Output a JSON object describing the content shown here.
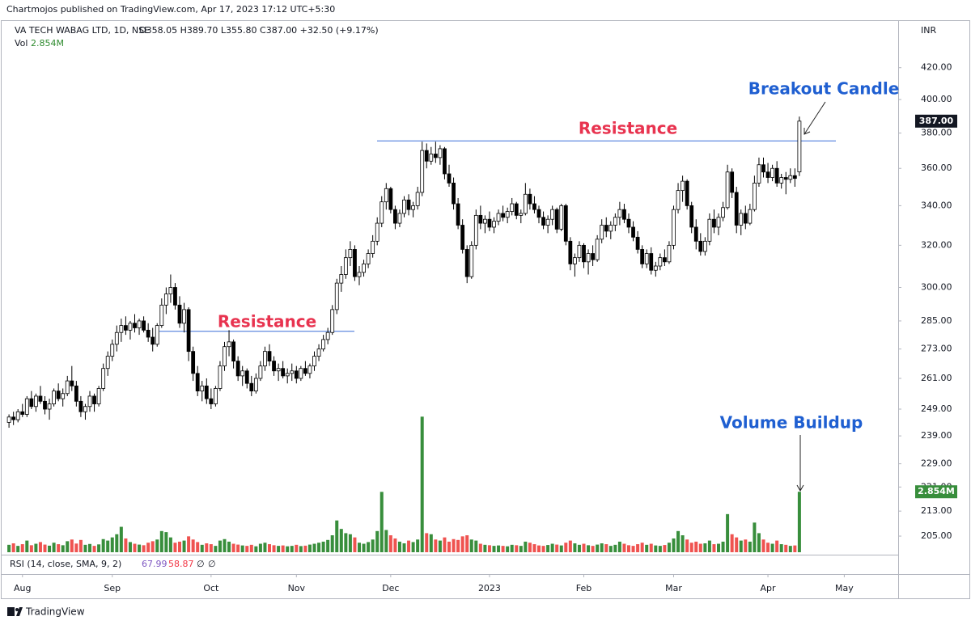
{
  "header": {
    "published": "Chartmojos published on TradingView.com, Apr 17, 2023 17:12 UTC+5:30",
    "symbol": "VA TECH WABAG LTD, 1D, NSE",
    "ohlc_text": "O358.05 H389.70 L355.80 C387.00 +32.50 (+9.17%)",
    "vol_label": "Vol",
    "currency": "INR",
    "rsi_label": "RSI (14, close, SMA, 9, 2)",
    "rsi_values": [
      67.99,
      58.87,
      "∅",
      "∅"
    ],
    "brand": "TradingView"
  },
  "chart_data": {
    "type": "candlestick",
    "log_scale": true,
    "grid": false,
    "up_color": "#ffffff",
    "down_color": "#000000",
    "volume_up_color": "#388e3c",
    "volume_down_color": "#ef5350",
    "ylim": [
      200,
      450
    ],
    "yticks": [
      {
        "value": 205,
        "label": "205.00"
      },
      {
        "value": 213,
        "label": "213.00"
      },
      {
        "value": 221,
        "label": "221.00"
      },
      {
        "value": 229,
        "label": "229.00"
      },
      {
        "value": 239,
        "label": "239.00"
      },
      {
        "value": 249,
        "label": "249.00"
      },
      {
        "value": 261,
        "label": "261.00"
      },
      {
        "value": 273,
        "label": "273.00"
      },
      {
        "value": 285,
        "label": "285.00"
      },
      {
        "value": 300,
        "label": "300.00"
      },
      {
        "value": 320,
        "label": "320.00"
      },
      {
        "value": 340,
        "label": "340.00"
      },
      {
        "value": 360,
        "label": "360.00"
      },
      {
        "value": 380,
        "label": "380.00"
      },
      {
        "value": 400,
        "label": "400.00"
      },
      {
        "value": 420,
        "label": "420.00"
      }
    ],
    "xlim": [
      -2,
      198
    ],
    "xticks": [
      {
        "value": 3,
        "label": "Aug"
      },
      {
        "value": 23,
        "label": "Sep"
      },
      {
        "value": 45,
        "label": "Oct"
      },
      {
        "value": 64,
        "label": "Nov"
      },
      {
        "value": 85,
        "label": "Dec"
      },
      {
        "value": 107,
        "label": "2023"
      },
      {
        "value": 128,
        "label": "Feb"
      },
      {
        "value": 148,
        "label": "Mar"
      },
      {
        "value": 169,
        "label": "Apr"
      },
      {
        "value": 186,
        "label": "May"
      }
    ],
    "ohlc": [
      [
        244,
        247,
        242,
        246
      ],
      [
        246,
        248,
        243,
        245
      ],
      [
        245,
        249,
        244,
        248
      ],
      [
        248,
        251,
        246,
        247
      ],
      [
        247,
        254,
        246,
        253
      ],
      [
        253,
        256,
        249,
        250
      ],
      [
        250,
        255,
        248,
        254
      ],
      [
        254,
        258,
        251,
        252
      ],
      [
        252,
        254,
        247,
        249
      ],
      [
        249,
        253,
        245,
        251
      ],
      [
        251,
        257,
        250,
        256
      ],
      [
        256,
        259,
        252,
        253
      ],
      [
        253,
        257,
        250,
        255
      ],
      [
        255,
        262,
        254,
        260
      ],
      [
        260,
        266,
        256,
        258
      ],
      [
        258,
        260,
        250,
        252
      ],
      [
        252,
        254,
        246,
        248
      ],
      [
        248,
        251,
        245,
        250
      ],
      [
        250,
        256,
        248,
        254
      ],
      [
        254,
        255,
        248,
        251
      ],
      [
        251,
        258,
        250,
        257
      ],
      [
        257,
        267,
        256,
        265
      ],
      [
        265,
        272,
        262,
        270
      ],
      [
        270,
        277,
        268,
        275
      ],
      [
        275,
        283,
        272,
        280
      ],
      [
        280,
        286,
        276,
        283
      ],
      [
        283,
        287,
        279,
        281
      ],
      [
        281,
        285,
        277,
        284
      ],
      [
        284,
        288,
        280,
        282
      ],
      [
        282,
        286,
        279,
        285
      ],
      [
        285,
        287,
        280,
        281
      ],
      [
        281,
        284,
        276,
        278
      ],
      [
        278,
        282,
        272,
        275
      ],
      [
        275,
        284,
        274,
        283
      ],
      [
        283,
        295,
        282,
        292
      ],
      [
        292,
        300,
        288,
        297
      ],
      [
        297,
        306,
        293,
        300
      ],
      [
        300,
        302,
        290,
        292
      ],
      [
        292,
        296,
        282,
        284
      ],
      [
        284,
        293,
        280,
        290
      ],
      [
        290,
        291,
        268,
        272
      ],
      [
        272,
        274,
        260,
        263
      ],
      [
        263,
        266,
        254,
        256
      ],
      [
        256,
        260,
        252,
        258
      ],
      [
        258,
        261,
        251,
        253
      ],
      [
        253,
        257,
        249,
        251
      ],
      [
        251,
        258,
        250,
        257
      ],
      [
        257,
        268,
        256,
        266
      ],
      [
        266,
        276,
        264,
        274
      ],
      [
        274,
        281,
        270,
        276
      ],
      [
        276,
        277,
        265,
        268
      ],
      [
        268,
        270,
        260,
        262
      ],
      [
        262,
        266,
        258,
        264
      ],
      [
        264,
        265,
        257,
        259
      ],
      [
        259,
        262,
        254,
        256
      ],
      [
        256,
        263,
        255,
        261
      ],
      [
        261,
        268,
        260,
        266
      ],
      [
        266,
        274,
        264,
        272
      ],
      [
        272,
        275,
        266,
        268
      ],
      [
        268,
        270,
        262,
        264
      ],
      [
        264,
        267,
        260,
        265
      ],
      [
        265,
        268,
        261,
        262
      ],
      [
        262,
        265,
        259,
        263
      ],
      [
        263,
        267,
        260,
        264
      ],
      [
        264,
        266,
        259,
        261
      ],
      [
        261,
        266,
        260,
        265
      ],
      [
        265,
        268,
        262,
        263
      ],
      [
        263,
        267,
        261,
        266
      ],
      [
        266,
        272,
        264,
        270
      ],
      [
        270,
        275,
        268,
        273
      ],
      [
        273,
        279,
        272,
        277
      ],
      [
        277,
        282,
        275,
        280
      ],
      [
        280,
        292,
        279,
        290
      ],
      [
        290,
        304,
        288,
        302
      ],
      [
        302,
        310,
        298,
        306
      ],
      [
        306,
        318,
        304,
        314
      ],
      [
        314,
        322,
        310,
        318
      ],
      [
        318,
        320,
        303,
        305
      ],
      [
        305,
        310,
        301,
        307
      ],
      [
        307,
        313,
        305,
        311
      ],
      [
        311,
        318,
        309,
        316
      ],
      [
        316,
        325,
        314,
        322
      ],
      [
        322,
        334,
        320,
        331
      ],
      [
        331,
        345,
        329,
        342
      ],
      [
        342,
        352,
        338,
        349
      ],
      [
        349,
        350,
        336,
        338
      ],
      [
        338,
        340,
        328,
        331
      ],
      [
        331,
        338,
        329,
        336
      ],
      [
        336,
        345,
        334,
        343
      ],
      [
        343,
        346,
        335,
        338
      ],
      [
        338,
        342,
        334,
        340
      ],
      [
        340,
        350,
        338,
        347
      ],
      [
        347,
        375,
        345,
        370
      ],
      [
        370,
        374,
        360,
        364
      ],
      [
        364,
        372,
        362,
        368
      ],
      [
        368,
        375,
        363,
        366
      ],
      [
        366,
        373,
        362,
        371
      ],
      [
        371,
        372,
        354,
        357
      ],
      [
        357,
        362,
        350,
        352
      ],
      [
        352,
        355,
        338,
        341
      ],
      [
        341,
        344,
        328,
        330
      ],
      [
        330,
        333,
        316,
        318
      ],
      [
        318,
        320,
        302,
        305
      ],
      [
        305,
        322,
        304,
        320
      ],
      [
        320,
        338,
        318,
        335
      ],
      [
        335,
        340,
        328,
        331
      ],
      [
        331,
        335,
        326,
        333
      ],
      [
        333,
        337,
        327,
        329
      ],
      [
        329,
        334,
        326,
        332
      ],
      [
        332,
        338,
        330,
        336
      ],
      [
        336,
        340,
        332,
        334
      ],
      [
        334,
        339,
        331,
        337
      ],
      [
        337,
        344,
        335,
        341
      ],
      [
        341,
        342,
        333,
        335
      ],
      [
        335,
        338,
        331,
        336
      ],
      [
        336,
        352,
        335,
        346
      ],
      [
        346,
        349,
        338,
        341
      ],
      [
        341,
        345,
        336,
        338
      ],
      [
        338,
        340,
        331,
        334
      ],
      [
        334,
        337,
        328,
        330
      ],
      [
        330,
        335,
        326,
        333
      ],
      [
        333,
        340,
        330,
        338
      ],
      [
        338,
        339,
        326,
        328
      ],
      [
        328,
        341,
        327,
        340
      ],
      [
        340,
        341,
        320,
        322
      ],
      [
        322,
        324,
        308,
        311
      ],
      [
        311,
        316,
        305,
        314
      ],
      [
        314,
        322,
        312,
        320
      ],
      [
        320,
        321,
        309,
        312
      ],
      [
        312,
        318,
        306,
        316
      ],
      [
        316,
        320,
        310,
        313
      ],
      [
        313,
        325,
        312,
        323
      ],
      [
        323,
        333,
        321,
        330
      ],
      [
        330,
        334,
        324,
        327
      ],
      [
        327,
        332,
        323,
        330
      ],
      [
        330,
        336,
        327,
        334
      ],
      [
        334,
        342,
        330,
        338
      ],
      [
        338,
        341,
        331,
        333
      ],
      [
        333,
        336,
        326,
        329
      ],
      [
        329,
        332,
        322,
        324
      ],
      [
        324,
        327,
        316,
        318
      ],
      [
        318,
        320,
        309,
        311
      ],
      [
        311,
        318,
        309,
        316
      ],
      [
        316,
        319,
        306,
        308
      ],
      [
        308,
        312,
        305,
        310
      ],
      [
        310,
        316,
        308,
        314
      ],
      [
        314,
        318,
        310,
        312
      ],
      [
        312,
        322,
        311,
        320
      ],
      [
        320,
        340,
        318,
        338
      ],
      [
        338,
        352,
        336,
        348
      ],
      [
        348,
        356,
        342,
        353
      ],
      [
        353,
        354,
        338,
        340
      ],
      [
        340,
        342,
        326,
        329
      ],
      [
        329,
        333,
        318,
        322
      ],
      [
        322,
        326,
        315,
        317
      ],
      [
        317,
        324,
        315,
        322
      ],
      [
        322,
        336,
        320,
        333
      ],
      [
        333,
        338,
        326,
        329
      ],
      [
        329,
        336,
        325,
        334
      ],
      [
        334,
        342,
        332,
        339
      ],
      [
        339,
        362,
        338,
        358
      ],
      [
        358,
        360,
        344,
        347
      ],
      [
        347,
        350,
        326,
        330
      ],
      [
        330,
        338,
        325,
        336
      ],
      [
        336,
        340,
        328,
        331
      ],
      [
        331,
        341,
        330,
        338
      ],
      [
        338,
        356,
        337,
        352
      ],
      [
        352,
        366,
        350,
        362
      ],
      [
        362,
        366,
        355,
        358
      ],
      [
        358,
        363,
        352,
        355
      ],
      [
        355,
        362,
        353,
        360
      ],
      [
        360,
        364,
        350,
        352
      ],
      [
        352,
        357,
        349,
        355
      ],
      [
        355,
        358,
        346,
        354
      ],
      [
        354,
        360,
        352,
        356
      ],
      [
        356,
        360,
        350,
        354.5
      ],
      [
        358.05,
        389.7,
        355.8,
        387
      ]
    ],
    "volume_ylim": [
      0,
      25
    ],
    "volume": [
      0.35,
      0.42,
      0.3,
      0.38,
      0.55,
      0.33,
      0.4,
      0.48,
      0.36,
      0.31,
      0.45,
      0.38,
      0.33,
      0.52,
      0.6,
      0.41,
      0.58,
      0.35,
      0.39,
      0.3,
      0.37,
      0.62,
      0.55,
      0.7,
      0.85,
      1.2,
      0.65,
      0.48,
      0.4,
      0.36,
      0.33,
      0.45,
      0.52,
      0.6,
      1.0,
      0.95,
      0.7,
      0.45,
      0.5,
      0.55,
      0.75,
      0.6,
      0.48,
      0.35,
      0.42,
      0.38,
      0.3,
      0.55,
      0.62,
      0.5,
      0.4,
      0.36,
      0.32,
      0.3,
      0.35,
      0.28,
      0.4,
      0.45,
      0.38,
      0.33,
      0.3,
      0.32,
      0.28,
      0.3,
      0.35,
      0.29,
      0.31,
      0.36,
      0.4,
      0.45,
      0.5,
      0.58,
      0.8,
      1.5,
      1.1,
      0.9,
      0.85,
      0.7,
      0.45,
      0.4,
      0.48,
      0.6,
      1.0,
      2.85,
      1.05,
      0.8,
      0.65,
      0.5,
      0.42,
      0.55,
      0.48,
      0.6,
      6.4,
      0.9,
      0.85,
      0.6,
      0.55,
      0.7,
      0.5,
      0.62,
      0.58,
      0.75,
      0.8,
      0.6,
      0.55,
      0.4,
      0.35,
      0.33,
      0.3,
      0.32,
      0.3,
      0.28,
      0.35,
      0.33,
      0.3,
      0.5,
      0.45,
      0.38,
      0.32,
      0.3,
      0.34,
      0.4,
      0.36,
      0.32,
      0.45,
      0.55,
      0.42,
      0.35,
      0.4,
      0.33,
      0.3,
      0.36,
      0.42,
      0.38,
      0.3,
      0.35,
      0.5,
      0.4,
      0.33,
      0.3,
      0.38,
      0.45,
      0.35,
      0.4,
      0.32,
      0.3,
      0.34,
      0.45,
      0.65,
      1.0,
      0.8,
      0.6,
      0.45,
      0.5,
      0.4,
      0.42,
      0.55,
      0.38,
      0.4,
      0.5,
      1.8,
      0.85,
      0.7,
      0.55,
      0.6,
      0.5,
      1.4,
      0.9,
      0.6,
      0.45,
      0.4,
      0.55,
      0.38,
      0.35,
      0.3,
      0.32,
      2.854
    ],
    "price_label": {
      "value": 387,
      "label": "387.00"
    },
    "volume_label": {
      "value": 2.854,
      "label": "2.854M"
    },
    "resistance_levels": [
      280.5,
      375.5
    ],
    "resistance_color": "#3a6fd8",
    "annotations": [
      "Breakout Candle",
      "Resistance",
      "Resistance",
      "Volume Buildup"
    ]
  }
}
